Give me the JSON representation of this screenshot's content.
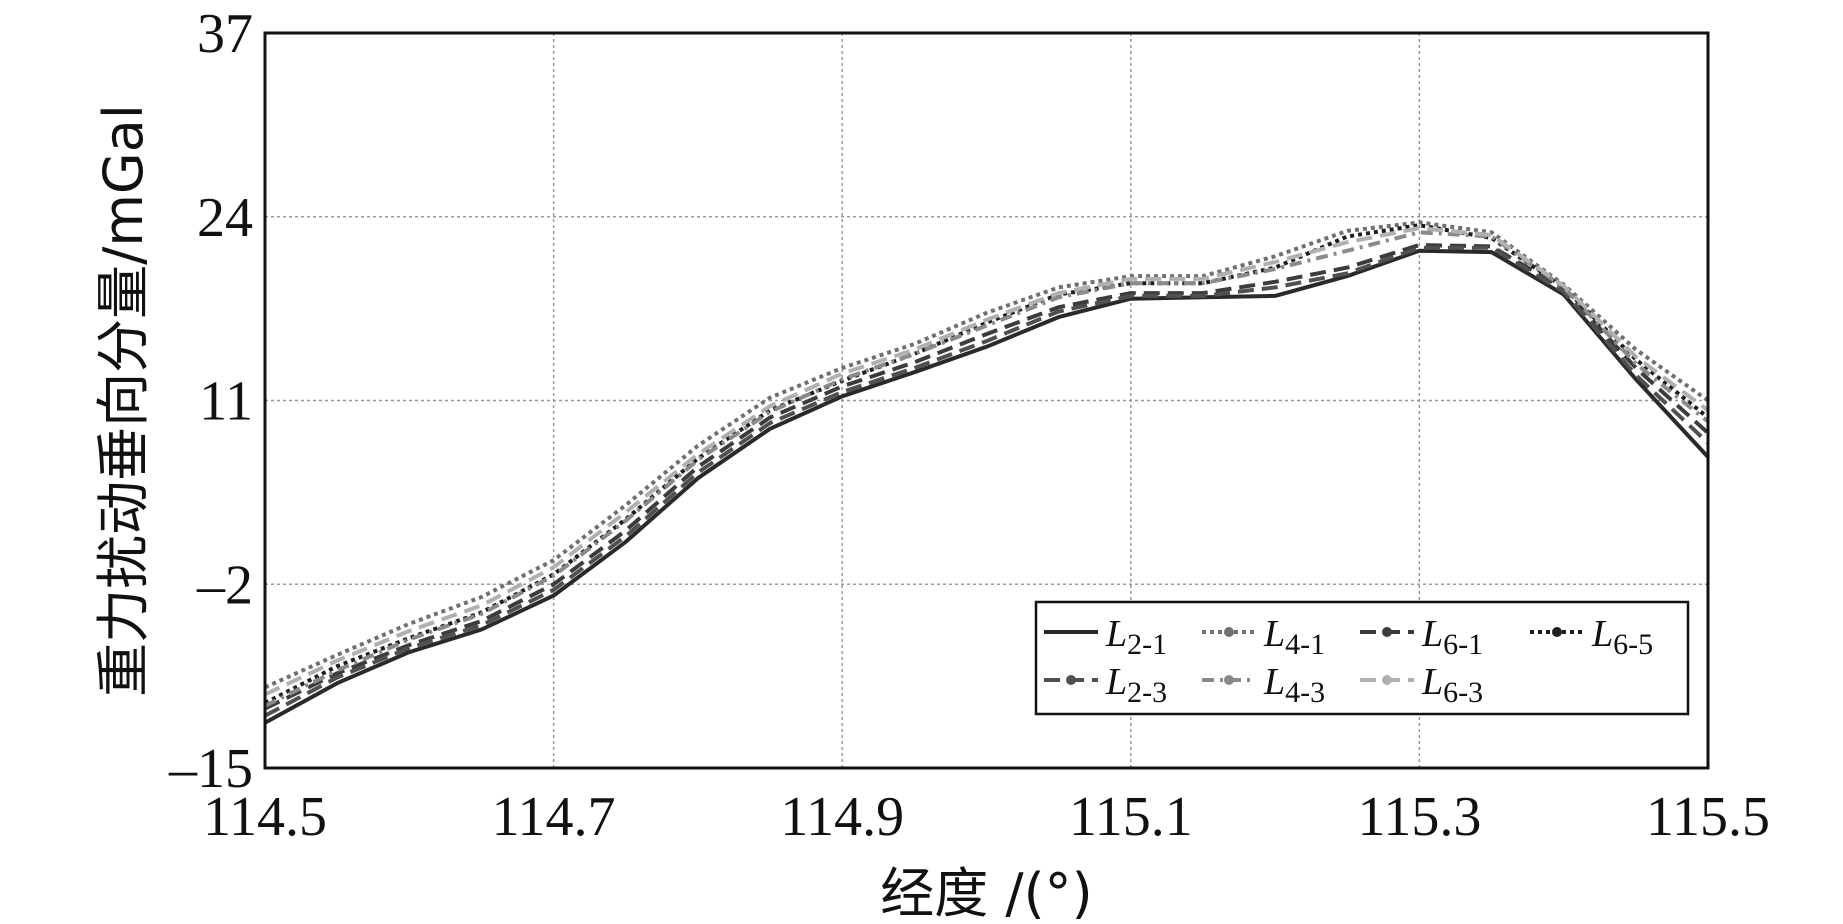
{
  "chart_data": {
    "type": "line",
    "xlabel": "经度 /(°)",
    "ylabel": "重力扰动垂向分量/mGal",
    "xlim": [
      114.5,
      115.5
    ],
    "ylim": [
      -15,
      37
    ],
    "x_ticks": [
      "114.5",
      "114.7",
      "114.9",
      "115.1",
      "115.3",
      "115.5"
    ],
    "y_ticks": [
      "–15",
      "–2",
      "11",
      "24",
      "37"
    ],
    "grid": true,
    "legend_position": "bottom-right",
    "x": [
      114.5,
      114.55,
      114.6,
      114.65,
      114.7,
      114.75,
      114.8,
      114.85,
      114.9,
      114.95,
      115.0,
      115.05,
      115.1,
      115.15,
      115.2,
      115.25,
      115.3,
      115.35,
      115.4,
      115.45,
      115.5
    ],
    "series": [
      {
        "name": "L",
        "sub": "2-1",
        "color": "#2a2a2a",
        "dash": "",
        "marker": false,
        "width": 4,
        "values": [
          -11.8,
          -9.0,
          -6.8,
          -5.2,
          -2.8,
          1.0,
          5.5,
          9.0,
          11.3,
          13.0,
          14.8,
          16.9,
          18.2,
          18.3,
          18.4,
          19.8,
          21.6,
          21.5,
          18.5,
          12.5,
          7.0
        ]
      },
      {
        "name": "L",
        "sub": "4-1",
        "color": "#707070",
        "dash": "4,4",
        "marker": true,
        "width": 4,
        "values": [
          -9.3,
          -7.0,
          -4.8,
          -2.9,
          -0.3,
          3.6,
          7.8,
          11.2,
          13.3,
          15.0,
          17.2,
          19.0,
          19.8,
          19.8,
          21.2,
          23.0,
          23.6,
          22.9,
          19.2,
          14.6,
          11.0
        ]
      },
      {
        "name": "L",
        "sub": "6-1",
        "color": "#3c3c3c",
        "dash": "16,8",
        "marker": true,
        "width": 4,
        "values": [
          -10.8,
          -8.3,
          -6.3,
          -4.6,
          -2.0,
          1.8,
          6.3,
          9.8,
          12.0,
          13.7,
          15.7,
          17.6,
          18.6,
          18.6,
          19.4,
          20.4,
          22.0,
          21.9,
          18.9,
          13.3,
          8.7
        ]
      },
      {
        "name": "L",
        "sub": "6-5",
        "color": "#1e1e1e",
        "dash": "4,4",
        "marker": true,
        "width": 4,
        "values": [
          -10.4,
          -7.8,
          -5.8,
          -4.0,
          -1.3,
          2.6,
          6.9,
          10.3,
          12.4,
          14.3,
          16.5,
          18.5,
          19.3,
          19.3,
          20.4,
          22.6,
          23.4,
          22.5,
          19.0,
          13.9,
          9.8
        ]
      },
      {
        "name": "L",
        "sub": "2-3",
        "color": "#505050",
        "dash": "16,8",
        "marker": true,
        "width": 4,
        "values": [
          -11.3,
          -8.6,
          -6.5,
          -4.9,
          -2.4,
          1.4,
          5.9,
          9.4,
          11.6,
          13.3,
          15.2,
          17.3,
          18.4,
          18.4,
          19.0,
          20.0,
          21.8,
          21.8,
          18.7,
          12.8,
          8.0
        ]
      },
      {
        "name": "L",
        "sub": "4-3",
        "color": "#8a8a8a",
        "dash": "12,6,3,6",
        "marker": true,
        "width": 4,
        "values": [
          -10.6,
          -8.1,
          -5.9,
          -4.1,
          -1.4,
          2.5,
          6.8,
          10.2,
          12.5,
          14.3,
          16.3,
          18.3,
          19.3,
          19.3,
          20.3,
          21.6,
          22.9,
          22.6,
          19.0,
          13.6,
          9.5
        ]
      },
      {
        "name": "L",
        "sub": "6-3",
        "color": "#b0b0b0",
        "dash": "16,8",
        "marker": true,
        "width": 4,
        "values": [
          -9.8,
          -7.4,
          -5.3,
          -3.5,
          -0.8,
          3.1,
          7.2,
          10.6,
          12.9,
          14.6,
          16.7,
          18.6,
          19.6,
          19.6,
          20.8,
          22.2,
          23.2,
          22.7,
          19.1,
          14.1,
          10.3
        ]
      }
    ]
  }
}
